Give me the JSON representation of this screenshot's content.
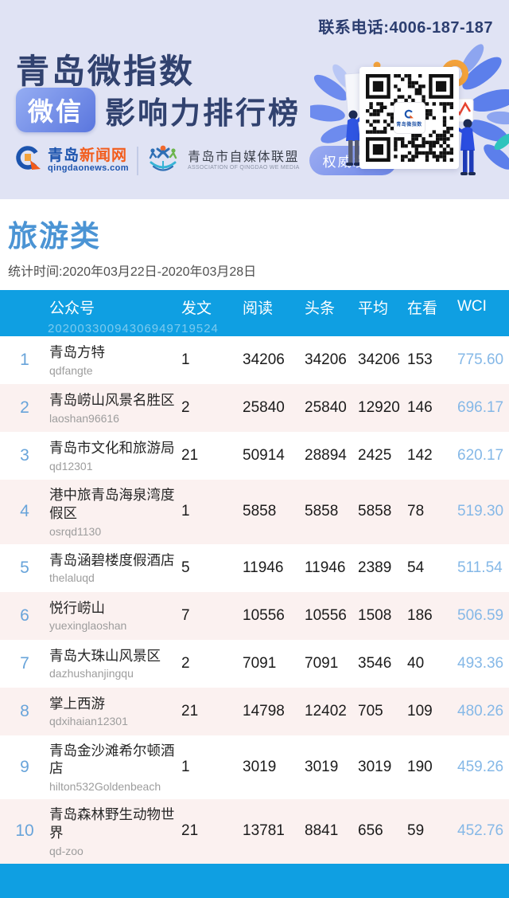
{
  "banner": {
    "phone": "联系电话:4006-187-187",
    "title_line1": "青岛微指数",
    "badge": "微信",
    "title_line2": "影响力排行榜",
    "logos": {
      "qdnews_name_blue": "青岛",
      "qdnews_name_orange": "新闻网",
      "qdnews_domain": "qingdaonews.com",
      "assoc_name": "青岛市自媒体联盟",
      "assoc_sub": "ASSOCIATION OF QINGDAO WE MEDIA",
      "authority_badge": "权威发布"
    },
    "qr_center_label": "青岛微指数"
  },
  "category": {
    "title": "旅游类",
    "period": "统计时间:2020年03月22日-2020年03月28日"
  },
  "table": {
    "watermark": "20200330094306949719524",
    "columns": [
      "公众号",
      "发文",
      "阅读",
      "头条",
      "平均",
      "在看",
      "WCI"
    ],
    "rows": [
      {
        "rank": "1",
        "name": "青岛方特",
        "id": "qdfangte",
        "posts": "1",
        "reads": "34206",
        "top": "34206",
        "avg": "34206",
        "watch": "153",
        "wci": "775.60"
      },
      {
        "rank": "2",
        "name": "青岛崂山风景名胜区",
        "id": "laoshan96616",
        "posts": "2",
        "reads": "25840",
        "top": "25840",
        "avg": "12920",
        "watch": "146",
        "wci": "696.17"
      },
      {
        "rank": "3",
        "name": "青岛市文化和旅游局",
        "id": "qd12301",
        "posts": "21",
        "reads": "50914",
        "top": "28894",
        "avg": "2425",
        "watch": "142",
        "wci": "620.17"
      },
      {
        "rank": "4",
        "name": "港中旅青岛海泉湾度假区",
        "id": "osrqd1130",
        "posts": "1",
        "reads": "5858",
        "top": "5858",
        "avg": "5858",
        "watch": "78",
        "wci": "519.30"
      },
      {
        "rank": "5",
        "name": "青岛涵碧楼度假酒店",
        "id": "thelaluqd",
        "posts": "5",
        "reads": "11946",
        "top": "11946",
        "avg": "2389",
        "watch": "54",
        "wci": "511.54"
      },
      {
        "rank": "6",
        "name": "悦行崂山",
        "id": "yuexinglaoshan",
        "posts": "7",
        "reads": "10556",
        "top": "10556",
        "avg": "1508",
        "watch": "186",
        "wci": "506.59"
      },
      {
        "rank": "7",
        "name": "青岛大珠山风景区",
        "id": "dazhushanjingqu",
        "posts": "2",
        "reads": "7091",
        "top": "7091",
        "avg": "3546",
        "watch": "40",
        "wci": "493.36"
      },
      {
        "rank": "8",
        "name": "掌上西游",
        "id": "qdxihaian12301",
        "posts": "21",
        "reads": "14798",
        "top": "12402",
        "avg": "705",
        "watch": "109",
        "wci": "480.26"
      },
      {
        "rank": "9",
        "name": "青岛金沙滩希尔顿酒店",
        "id": "hilton532Goldenbeach",
        "posts": "1",
        "reads": "3019",
        "top": "3019",
        "avg": "3019",
        "watch": "190",
        "wci": "459.26"
      },
      {
        "rank": "10",
        "name": "青岛森林野生动物世界",
        "id": "qd-zoo",
        "posts": "21",
        "reads": "13781",
        "top": "8841",
        "avg": "656",
        "watch": "59",
        "wci": "452.76"
      }
    ]
  },
  "colors": {
    "banner_bg": "#e0e3f4",
    "title_navy": "#31426f",
    "table_blue": "#0f9fe2",
    "category_blue": "#4b94d4",
    "row_pink": "#fbf1f0",
    "rank_blue": "#68a4da",
    "wci_blue": "#85b8e7",
    "accent_orange": "#f3a23a"
  }
}
